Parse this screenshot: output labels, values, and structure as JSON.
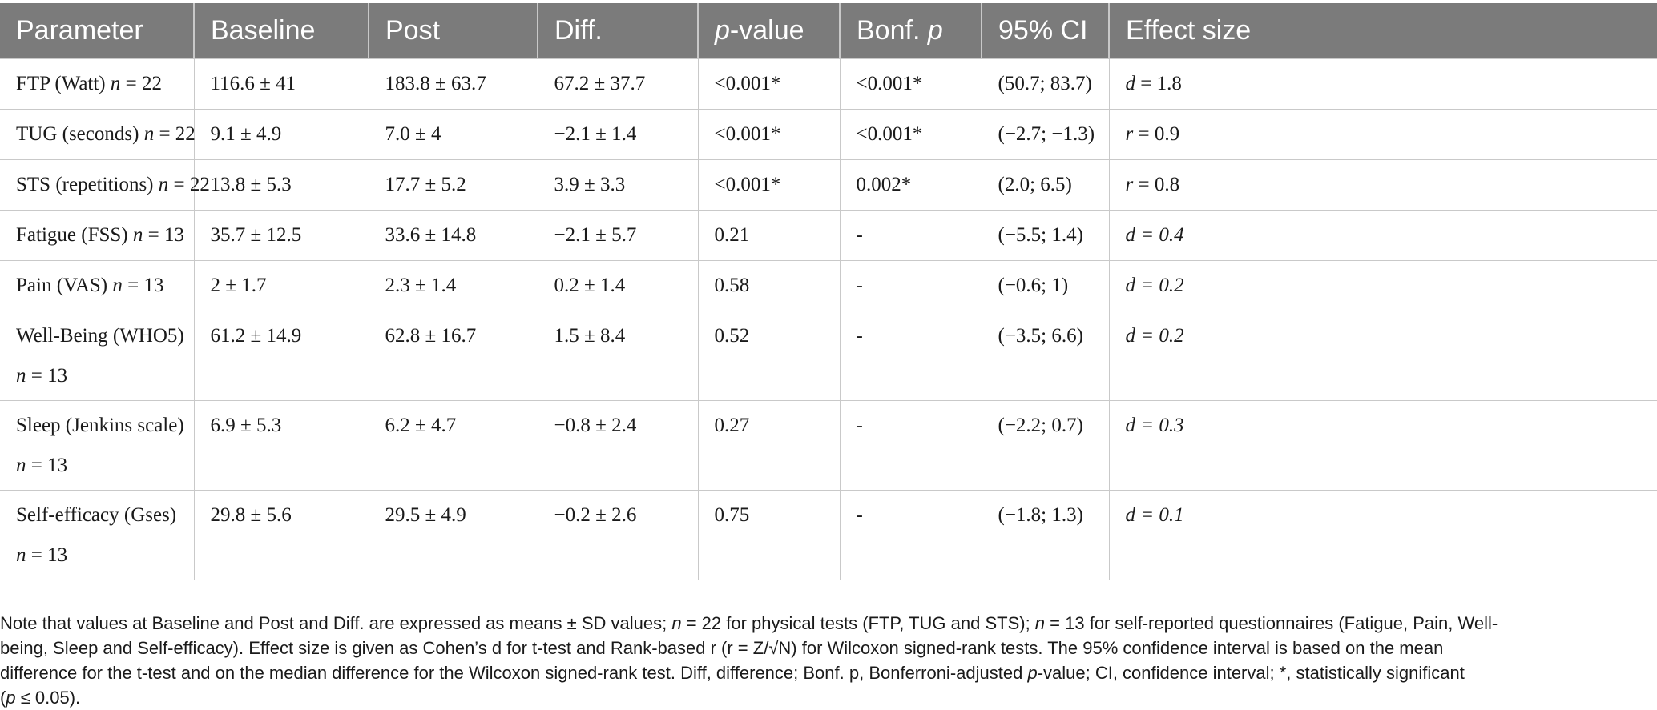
{
  "table": {
    "headers": {
      "parameter": "Parameter",
      "baseline": "Baseline",
      "post": "Post",
      "diff": "Diff.",
      "pvalue_p": "p",
      "pvalue_rest": "-value",
      "bonf_prefix": "Bonf. ",
      "bonf_p": "p",
      "ci": "95% CI",
      "effect": "Effect size"
    },
    "rows": [
      {
        "param_label": "FTP (Watt) ",
        "param_n": "n",
        "param_nval": " = 22",
        "param_line2": "",
        "baseline": "116.6 ± 41",
        "post": "183.8 ± 63.7",
        "diff": "67.2 ± 37.7",
        "pvalue": "<0.001*",
        "bonf": "<0.001*",
        "ci": "(50.7; 83.7)",
        "effect_var": "d",
        "effect_val": " = 1.8"
      },
      {
        "param_label": "TUG (seconds) ",
        "param_n": "n",
        "param_nval": " = 22",
        "param_line2": "",
        "baseline": "9.1 ± 4.9",
        "post": "7.0 ± 4",
        "diff": "−2.1 ± 1.4",
        "pvalue": "<0.001*",
        "bonf": "<0.001*",
        "ci": "(−2.7; −1.3)",
        "effect_var": "r",
        "effect_val": " = 0.9"
      },
      {
        "param_label": "STS (repetitions) ",
        "param_n": "n",
        "param_nval": " = 22",
        "param_line2": "",
        "baseline": "13.8 ± 5.3",
        "post": "17.7 ± 5.2",
        "diff": "3.9 ± 3.3",
        "pvalue": "<0.001*",
        "bonf": "0.002*",
        "ci": "(2.0; 6.5)",
        "effect_var": "r",
        "effect_val": " = 0.8"
      },
      {
        "param_label": "Fatigue (FSS) ",
        "param_n": "n",
        "param_nval": " = 13",
        "param_line2": "",
        "baseline": "35.7 ± 12.5",
        "post": "33.6 ± 14.8",
        "diff": "−2.1 ± 5.7",
        "pvalue": "0.21",
        "bonf": "-",
        "ci": "(−5.5; 1.4)",
        "effect_var": "d",
        "effect_val": " = 0.4"
      },
      {
        "param_label": "Pain (VAS) ",
        "param_n": "n",
        "param_nval": " = 13",
        "param_line2": "",
        "baseline": "2 ± 1.7",
        "post": "2.3 ± 1.4",
        "diff": "0.2 ± 1.4",
        "pvalue": "0.58",
        "bonf": "-",
        "ci": "(−0.6; 1)",
        "effect_var": "d",
        "effect_val": " = 0.2"
      },
      {
        "param_label": "Well-Being (WHO5)",
        "param_n": "n",
        "param_nval": " = 13",
        "param_line2": "yes",
        "baseline": "61.2 ± 14.9",
        "post": "62.8 ± 16.7",
        "diff": "1.5 ± 8.4",
        "pvalue": "0.52",
        "bonf": "-",
        "ci": "(−3.5; 6.6)",
        "effect_var": "d",
        "effect_val": " = 0.2"
      },
      {
        "param_label": "Sleep (Jenkins scale)",
        "param_n": "n",
        "param_nval": " = 13",
        "param_line2": "yes",
        "baseline": "6.9 ± 5.3",
        "post": "6.2 ± 4.7",
        "diff": "−0.8 ± 2.4",
        "pvalue": "0.27",
        "bonf": "-",
        "ci": "(−2.2; 0.7)",
        "effect_var": "d",
        "effect_val": " = 0.3"
      },
      {
        "param_label": "Self-efficacy (Gses)",
        "param_n": "n",
        "param_nval": " = 13",
        "param_line2": "yes",
        "baseline": "29.8 ± 5.6",
        "post": "29.5 ± 4.9",
        "diff": "−0.2 ± 2.6",
        "pvalue": "0.75",
        "bonf": "-",
        "ci": "(−1.8; 1.3)",
        "effect_var": "d",
        "effect_val": " = 0.1"
      }
    ]
  },
  "note": {
    "line1_a": "Note that values at Baseline and Post and Diff. are expressed as means ± SD values; ",
    "line1_n1": "n",
    "line1_b": " = 22 for physical tests (FTP, TUG and STS); ",
    "line1_n2": "n",
    "line1_c": " = 13 for self-reported questionnaires (Fatigue, Pain, Well-",
    "line2_a": "being, Sleep and Self-efficacy). Effect size is given as Cohen’s d for t-test and Rank-based r (r = Z/",
    "line2_sqrt": "√N",
    "line2_b": ") for Wilcoxon signed-rank tests. The 95% confidence interval is based on the mean",
    "line3": "difference for the t-test and on the median difference for the Wilcoxon signed-rank test. Diff, difference; Bonf. p, Bonferroni-adjusted ",
    "line3_p": "p",
    "line3_b": "-value; CI, confidence interval; *, statistically significant",
    "line4_a": "(",
    "line4_p": "p",
    "line4_b": " ≤ 0.05)."
  }
}
